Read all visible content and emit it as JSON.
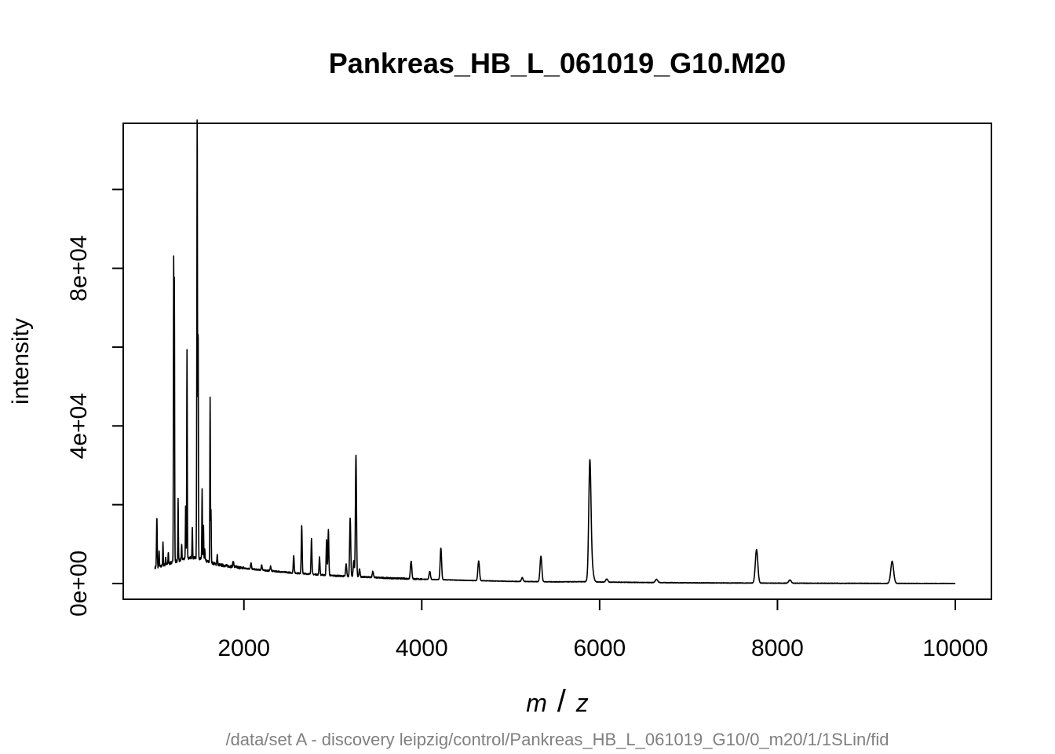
{
  "chart_data": {
    "type": "line",
    "title": "Pankreas_HB_L_061019_G10.M20",
    "subtitle": "/data/set A - discovery leipzig/control/Pankreas_HB_L_061019_G10/0_m20/1/1SLin/fid",
    "xlabel_parts": [
      "m",
      "/",
      "z"
    ],
    "ylabel": "intensity",
    "xlim": [
      643,
      10406
    ],
    "ylim": [
      -4000,
      116800
    ],
    "x_ticks": [
      2000,
      4000,
      6000,
      8000,
      10000
    ],
    "x_tick_labels": [
      "2000",
      "4000",
      "6000",
      "8000",
      "10000"
    ],
    "y_ticks": [
      0,
      20000,
      40000,
      60000,
      80000,
      100000
    ],
    "y_tick_labels": [
      "0e+00",
      "",
      "4e+04",
      "",
      "8e+04",
      ""
    ],
    "grid": false,
    "legend": "none",
    "line_color": "#000000",
    "baseline": {
      "x": [
        1000,
        1100,
        1200,
        1300,
        1400,
        1500,
        1600,
        1700,
        1800,
        2000,
        2200,
        2500,
        2800,
        3000,
        3300,
        3600,
        4000,
        4500,
        5000,
        5500,
        5800,
        6000,
        6500,
        7000,
        8000,
        9000,
        10000
      ],
      "y": [
        4000,
        4600,
        5400,
        6100,
        6600,
        6400,
        5500,
        4800,
        4500,
        3900,
        3400,
        2800,
        2300,
        2000,
        1700,
        1400,
        1100,
        800,
        550,
        420,
        450,
        380,
        260,
        180,
        90,
        40,
        0
      ]
    },
    "peaks": {
      "x": [
        1021,
        1046,
        1090,
        1120,
        1150,
        1210,
        1218,
        1260,
        1300,
        1345,
        1360,
        1420,
        1470,
        1475,
        1485,
        1530,
        1545,
        1560,
        1620,
        1630,
        1700,
        1880,
        2080,
        2200,
        2300,
        2560,
        2650,
        2760,
        2850,
        2930,
        2950,
        3150,
        3195,
        3235,
        3260,
        3300,
        3450,
        3880,
        4090,
        4215,
        4640,
        5130,
        5340,
        5890,
        5902,
        6080,
        6640,
        7765,
        8140,
        9290
      ],
      "y": [
        12600,
        4000,
        6000,
        2000,
        3000,
        76000,
        70000,
        16000,
        4000,
        14000,
        53000,
        8000,
        27000,
        106000,
        59000,
        18000,
        9000,
        3000,
        42000,
        13000,
        2500,
        1500,
        1500,
        1400,
        1200,
        4500,
        12000,
        9000,
        4500,
        9000,
        11500,
        3000,
        15000,
        4000,
        31000,
        2000,
        1500,
        4500,
        2000,
        8000,
        5000,
        1000,
        6500,
        26000,
        6000,
        800,
        800,
        8500,
        800,
        5600
      ],
      "width": [
        4,
        3,
        3,
        3,
        3,
        3,
        3,
        3,
        3,
        3,
        3,
        3,
        3,
        3,
        3,
        3,
        3,
        3,
        3,
        3,
        4,
        5,
        5,
        5,
        5,
        5,
        5,
        5,
        5,
        5,
        5,
        6,
        6,
        6,
        6,
        6,
        7,
        8,
        8,
        8,
        9,
        9,
        10,
        12,
        20,
        12,
        14,
        14,
        14,
        16
      ]
    }
  }
}
